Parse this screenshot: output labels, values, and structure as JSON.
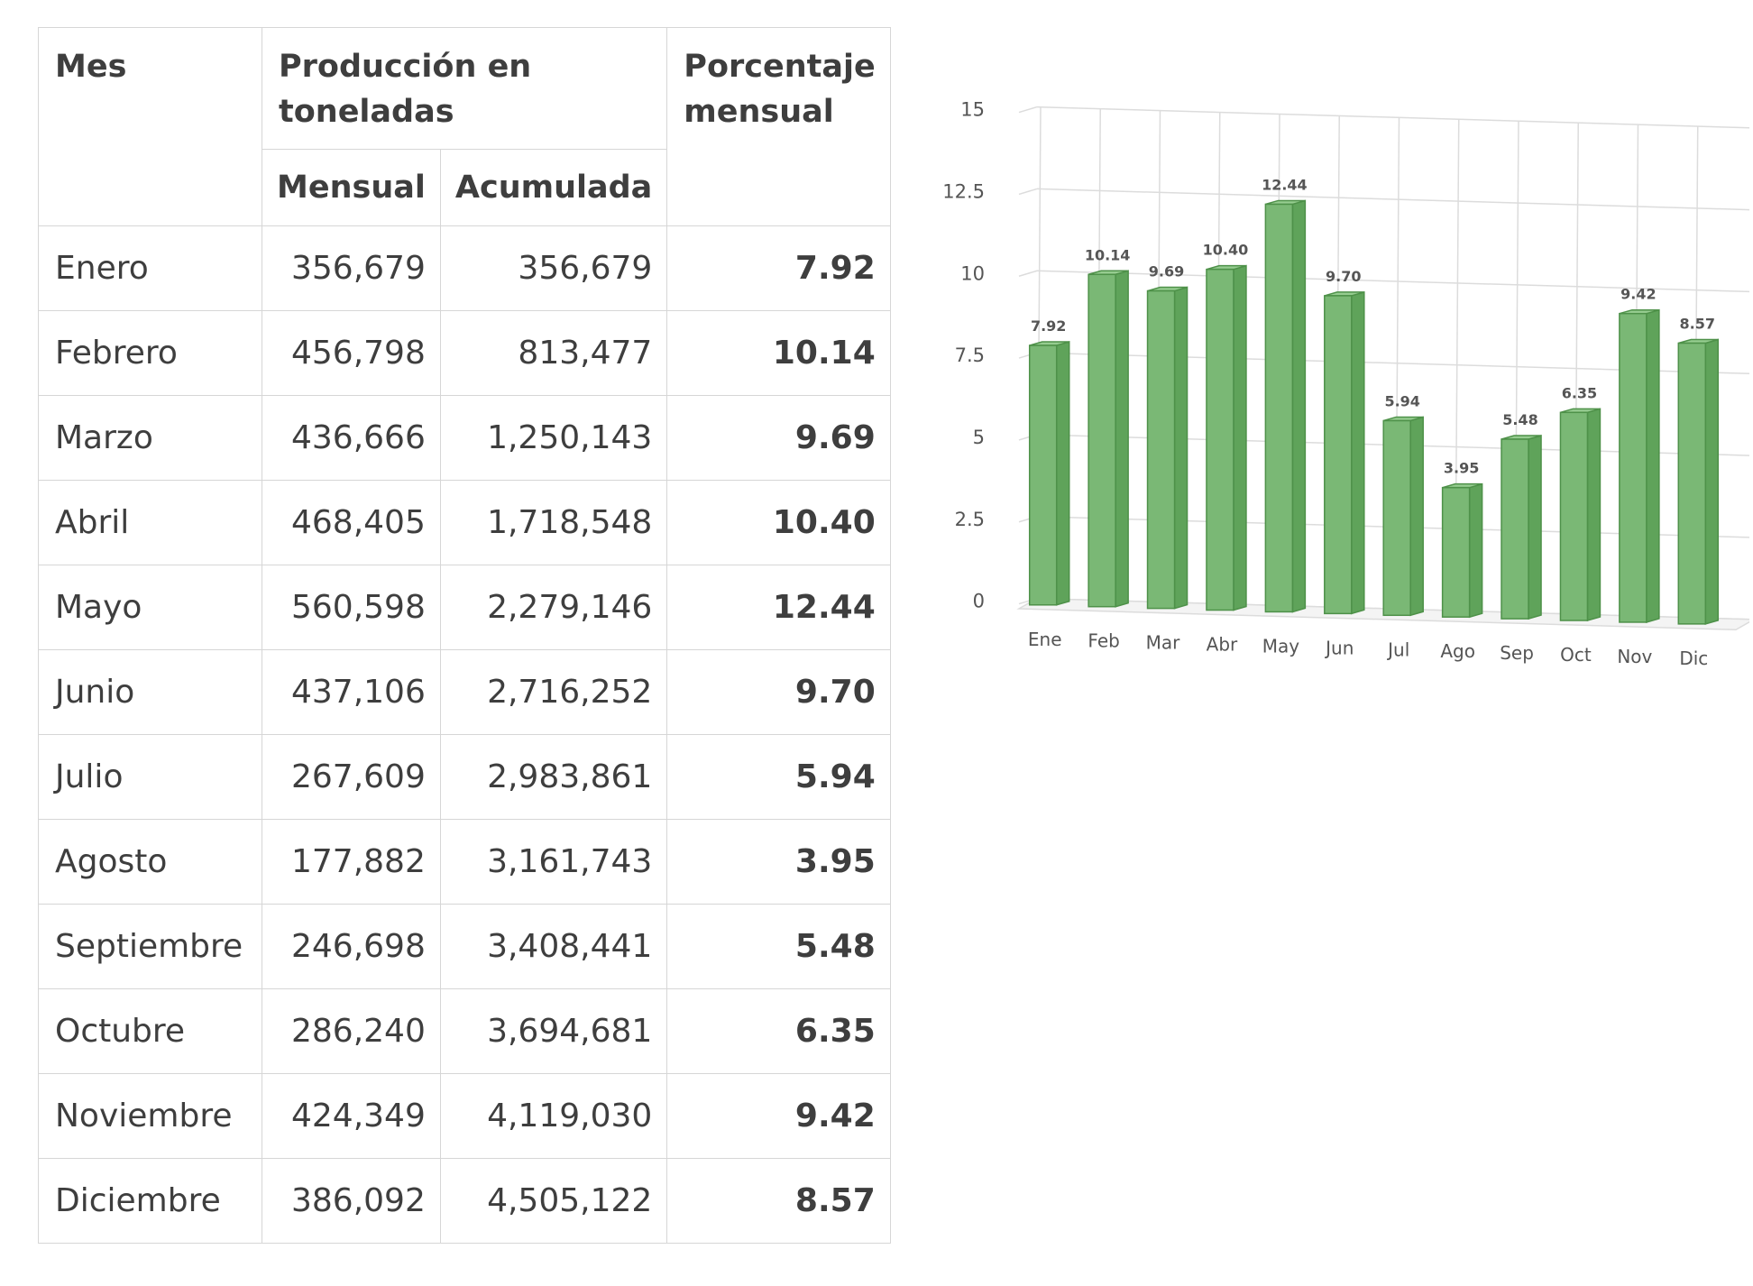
{
  "table": {
    "headers": {
      "mes": "Mes",
      "produccion": "Producción en toneladas",
      "mensual": "Mensual",
      "acumulada": "Acumulada",
      "porcentaje": "Porcentaje mensual"
    },
    "rows": [
      {
        "mes": "Enero",
        "mensual": "356,679",
        "acumulada": "356,679",
        "porcentaje": "7.92"
      },
      {
        "mes": "Febrero",
        "mensual": "456,798",
        "acumulada": "813,477",
        "porcentaje": "10.14"
      },
      {
        "mes": "Marzo",
        "mensual": "436,666",
        "acumulada": "1,250,143",
        "porcentaje": "9.69"
      },
      {
        "mes": "Abril",
        "mensual": "468,405",
        "acumulada": "1,718,548",
        "porcentaje": "10.40"
      },
      {
        "mes": "Mayo",
        "mensual": "560,598",
        "acumulada": "2,279,146",
        "porcentaje": "12.44"
      },
      {
        "mes": "Junio",
        "mensual": "437,106",
        "acumulada": "2,716,252",
        "porcentaje": "9.70"
      },
      {
        "mes": "Julio",
        "mensual": "267,609",
        "acumulada": "2,983,861",
        "porcentaje": "5.94"
      },
      {
        "mes": "Agosto",
        "mensual": "177,882",
        "acumulada": "3,161,743",
        "porcentaje": "3.95"
      },
      {
        "mes": "Septiembre",
        "mensual": "246,698",
        "acumulada": "3,408,441",
        "porcentaje": "5.48"
      },
      {
        "mes": "Octubre",
        "mensual": "286,240",
        "acumulada": "3,694,681",
        "porcentaje": "6.35"
      },
      {
        "mes": "Noviembre",
        "mensual": "424,349",
        "acumulada": "4,119,030",
        "porcentaje": "9.42"
      },
      {
        "mes": "Diciembre",
        "mensual": "386,092",
        "acumulada": "4,505,122",
        "porcentaje": "8.57"
      }
    ]
  },
  "chart_data": {
    "type": "bar",
    "style": "3d-column",
    "categories": [
      "Ene",
      "Feb",
      "Mar",
      "Abr",
      "May",
      "Jun",
      "Jul",
      "Ago",
      "Sep",
      "Oct",
      "Nov",
      "Dic"
    ],
    "values": [
      7.92,
      10.14,
      9.69,
      10.4,
      12.44,
      9.7,
      5.94,
      3.95,
      5.48,
      6.35,
      9.42,
      8.57
    ],
    "data_labels": [
      "7.92",
      "10.14",
      "9.69",
      "10.40",
      "12.44",
      "9.70",
      "5.94",
      "3.95",
      "5.48",
      "6.35",
      "9.42",
      "8.57"
    ],
    "yticks": [
      "0",
      "2.5",
      "5",
      "7.5",
      "10",
      "12.5",
      "15"
    ],
    "ylim": [
      0,
      15
    ],
    "grid": true,
    "legend": "none",
    "colors": {
      "bar": "#7ab875",
      "bar_edge": "#4e9149",
      "bar_side": "#5fa35a",
      "bar_top": "#96cc90",
      "grid": "#dcdcdc",
      "text": "#555555"
    }
  }
}
